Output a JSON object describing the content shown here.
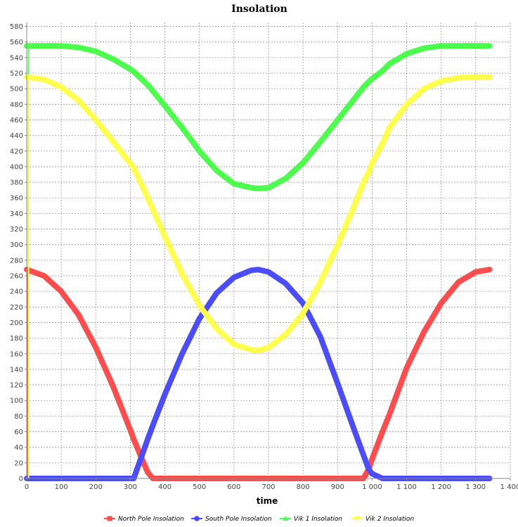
{
  "chart_data": {
    "type": "line",
    "title": "Insolation",
    "xlabel": "time",
    "ylabel": "",
    "xlim": [
      0,
      1400
    ],
    "ylim": [
      0,
      585
    ],
    "xticks": [
      0,
      100,
      200,
      300,
      400,
      500,
      600,
      700,
      800,
      900,
      1000,
      1100,
      1200,
      1300,
      1400
    ],
    "xtick_labels": [
      "0",
      "100",
      "200",
      "300",
      "400",
      "500",
      "600",
      "700",
      "800",
      "900",
      "1 000",
      "1 100",
      "1 200",
      "1 300",
      "1 400"
    ],
    "yticks": [
      0,
      20,
      40,
      60,
      80,
      100,
      120,
      140,
      160,
      180,
      200,
      220,
      240,
      260,
      280,
      300,
      320,
      340,
      360,
      380,
      400,
      420,
      440,
      460,
      480,
      500,
      520,
      540,
      560,
      580
    ],
    "grid": true,
    "legend_position": "bottom",
    "x": [
      0,
      50,
      100,
      150,
      200,
      250,
      300,
      310,
      350,
      365,
      400,
      450,
      500,
      550,
      600,
      650,
      670,
      700,
      750,
      800,
      850,
      900,
      950,
      975,
      990,
      1000,
      1030,
      1050,
      1100,
      1150,
      1200,
      1250,
      1300,
      1340
    ],
    "series": [
      {
        "name": "North Pole Insolation",
        "color": "#ff4c4c",
        "marker": "square",
        "values": [
          268,
          260,
          240,
          210,
          168,
          118,
          62,
          50,
          8,
          0,
          0,
          0,
          0,
          0,
          0,
          0,
          0,
          0,
          0,
          0,
          0,
          0,
          0,
          0,
          12,
          25,
          60,
          82,
          142,
          188,
          225,
          252,
          265,
          268
        ]
      },
      {
        "name": "South Pole Insolation",
        "color": "#4c4cff",
        "marker": "circle",
        "values": [
          0,
          0,
          0,
          0,
          0,
          0,
          0,
          0,
          50,
          68,
          108,
          160,
          205,
          238,
          258,
          267,
          268,
          265,
          250,
          225,
          182,
          122,
          60,
          30,
          12,
          6,
          0,
          0,
          0,
          0,
          0,
          0,
          0,
          0
        ]
      },
      {
        "name": "Vik 1 Insolation",
        "color": "#4cff4c",
        "marker": "triangle",
        "values": [
          555,
          555,
          555,
          553,
          548,
          538,
          525,
          522,
          505,
          497,
          478,
          450,
          420,
          395,
          378,
          373,
          372,
          373,
          385,
          405,
          432,
          460,
          488,
          502,
          509,
          513,
          523,
          532,
          545,
          552,
          555,
          555,
          555,
          555
        ]
      },
      {
        "name": "Vik 2 Insolation",
        "color": "#ffff4c",
        "marker": "triangle-down",
        "values": [
          515,
          512,
          502,
          485,
          460,
          432,
          404,
          398,
          360,
          345,
          310,
          262,
          222,
          192,
          172,
          165,
          164,
          168,
          185,
          212,
          252,
          300,
          352,
          380,
          393,
          405,
          430,
          450,
          480,
          500,
          510,
          514,
          515,
          515
        ]
      }
    ]
  }
}
